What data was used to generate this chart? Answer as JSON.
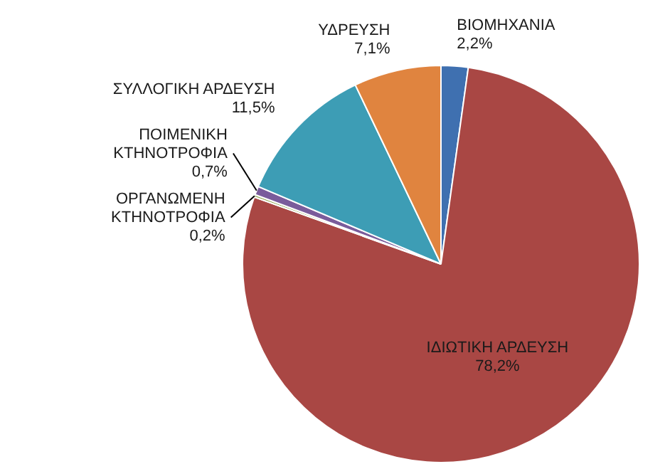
{
  "chart_data": {
    "type": "pie",
    "categories": [
      "ΒΙΟΜΗΧΑΝΙΑ",
      "ΙΔΙΩΤΙΚΗ ΑΡΔΕΥΣΗ",
      "ΟΡΓΑΝΩΜΕΝΗ ΚΤΗΝΟΤΡΟΦΙΑ",
      "ΠΟΙΜΕΝΙΚΗ ΚΤΗΝΟΤΡΟΦΙΑ",
      "ΣΥΛΛΟΓΙΚΗ ΑΡΔΕΥΣΗ",
      "ΥΔΡΕΥΣΗ"
    ],
    "values": [
      2.2,
      78.2,
      0.2,
      0.7,
      11.5,
      7.1
    ],
    "value_labels": [
      "2,2%",
      "78,2%",
      "0,2%",
      "0,7%",
      "11,5%",
      "7,1%"
    ],
    "colors": [
      "#3f70b0",
      "#a94744",
      "#8ea64f",
      "#7a5c9b",
      "#3d9db5",
      "#e0843f"
    ],
    "legend": false
  }
}
